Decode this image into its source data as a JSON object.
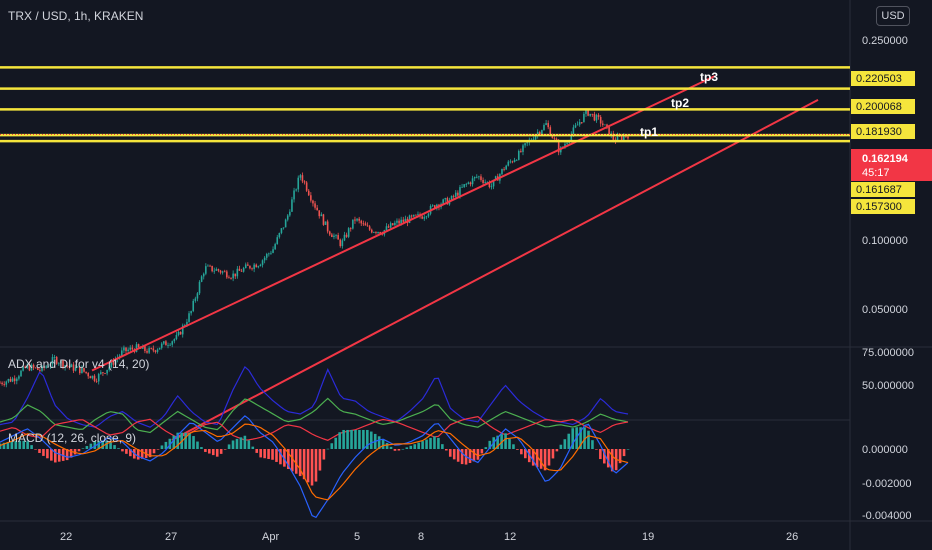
{
  "header": {
    "symbol_title": "TRX / USD, 1h, KRAKEN",
    "currency_button": "USD",
    "adx_title": "ADX and DI for v4 (14, 20)",
    "macd_title": "MACD (12, 26, close, 9)"
  },
  "colors": {
    "background": "#131722",
    "level_line": "#f5e53c",
    "channel": "#f23645",
    "candle_up": "#26a69a",
    "candle_down": "#ef5350",
    "adx": "#2b2bd9",
    "di_plus": "#4caf50",
    "di_minus": "#f23645",
    "macd_line": "#2962ff",
    "signal_line": "#ff6d00",
    "hist_up": "#26a69a",
    "hist_down": "#ff5252",
    "last_price_tag": "#f23645"
  },
  "chart_data": {
    "type": "candlestick",
    "x_ticks": [
      "22",
      "27",
      "Apr",
      "5",
      "8",
      "12",
      "19",
      "26"
    ],
    "price_axis_ticks": [
      "0.250000",
      "0.100000",
      "0.050000"
    ],
    "price_levels": [
      {
        "label": "tp3",
        "value": "0.220503"
      },
      {
        "label": "tp2",
        "value": "0.200068"
      },
      {
        "label": "tp1",
        "value": "0.181930"
      },
      {
        "label": "",
        "value": "0.161687"
      },
      {
        "label": "",
        "value": "0.157300"
      }
    ],
    "last_price": {
      "value": "0.162194",
      "countdown": "45:17"
    },
    "price_path": [
      0.052,
      0.053,
      0.056,
      0.055,
      0.058,
      0.056,
      0.055,
      0.053,
      0.056,
      0.06,
      0.061,
      0.06,
      0.062,
      0.064,
      0.072,
      0.088,
      0.087,
      0.085,
      0.088,
      0.09,
      0.096,
      0.11,
      0.135,
      0.118,
      0.105,
      0.098,
      0.11,
      0.105,
      0.104,
      0.108,
      0.11,
      0.112,
      0.118,
      0.12,
      0.128,
      0.134,
      0.128,
      0.14,
      0.148,
      0.16,
      0.17,
      0.15,
      0.165,
      0.18,
      0.172,
      0.158,
      0.162
    ],
    "channel": {
      "upper": [
        {
          "x": "Mar 23",
          "y": 0.055
        },
        {
          "x": "Apr 20",
          "y": 0.212
        }
      ],
      "lower": [
        {
          "x": "Mar 25",
          "y": 0.04
        },
        {
          "x": "Apr 26",
          "y": 0.19
        }
      ]
    },
    "adx_panel": {
      "axis_ticks": [
        "75.000000",
        "50.000000"
      ],
      "adx": [
        20,
        22,
        40,
        62,
        35,
        24,
        20,
        18,
        26,
        30,
        22,
        18,
        26,
        42,
        30,
        22,
        20,
        45,
        65,
        48,
        38,
        30,
        28,
        34,
        62,
        40,
        38,
        30,
        26,
        22,
        30,
        40,
        58,
        32,
        24,
        22,
        36,
        50,
        38,
        30,
        24,
        22,
        20,
        26,
        40,
        30,
        28
      ],
      "di_plus": [
        22,
        25,
        35,
        30,
        20,
        18,
        16,
        24,
        30,
        28,
        16,
        14,
        22,
        30,
        24,
        18,
        16,
        30,
        40,
        34,
        28,
        22,
        24,
        30,
        40,
        30,
        28,
        24,
        20,
        22,
        26,
        30,
        36,
        24,
        20,
        18,
        24,
        30,
        26,
        22,
        18,
        20,
        18,
        22,
        28,
        24,
        22
      ],
      "di_minus": [
        15,
        18,
        12,
        10,
        20,
        22,
        24,
        18,
        12,
        14,
        22,
        24,
        16,
        10,
        14,
        20,
        22,
        12,
        8,
        10,
        14,
        20,
        18,
        12,
        8,
        14,
        16,
        20,
        24,
        22,
        18,
        14,
        10,
        20,
        24,
        26,
        18,
        12,
        16,
        20,
        24,
        22,
        24,
        18,
        14,
        20,
        22
      ]
    },
    "macd_panel": {
      "axis_ticks": [
        "0.000000",
        "-0.002000",
        "-0.004000"
      ],
      "macd": [
        0.0004,
        0.0008,
        0.0012,
        0.0006,
        -0.0002,
        -0.0005,
        -0.0003,
        0.0002,
        0.0007,
        0.0004,
        -0.0004,
        -0.0007,
        -0.0002,
        0.0008,
        0.0016,
        0.001,
        0.0004,
        0.0012,
        0.002,
        0.001,
        0.0004,
        -0.0008,
        -0.0022,
        -0.0042,
        -0.003,
        -0.0015,
        -0.0005,
        0.0003,
        0.0006,
        0.0002,
        0.0004,
        0.0008,
        0.0016,
        0.0006,
        -0.0004,
        -0.0008,
        0.0002,
        0.0012,
        0.0006,
        -0.0006,
        -0.002,
        -0.0012,
        0.0004,
        0.0016,
        0.0002,
        -0.0015,
        -0.0008
      ],
      "signal": [
        0.0002,
        0.0005,
        0.0009,
        0.0008,
        0.0003,
        -0.0001,
        -0.0003,
        -0.0001,
        0.0004,
        0.0005,
        0.0,
        -0.0004,
        -0.0004,
        0.0002,
        0.001,
        0.0011,
        0.0007,
        0.0009,
        0.0015,
        0.0013,
        0.0008,
        -0.0001,
        -0.0012,
        -0.0028,
        -0.003,
        -0.0022,
        -0.0012,
        -0.0004,
        0.0002,
        0.0003,
        0.0003,
        0.0005,
        0.0011,
        0.0009,
        0.0002,
        -0.0004,
        -0.0002,
        0.0006,
        0.0007,
        0.0,
        -0.0012,
        -0.0013,
        -0.0004,
        0.0008,
        0.0006,
        -0.0006,
        -0.0008
      ]
    }
  }
}
